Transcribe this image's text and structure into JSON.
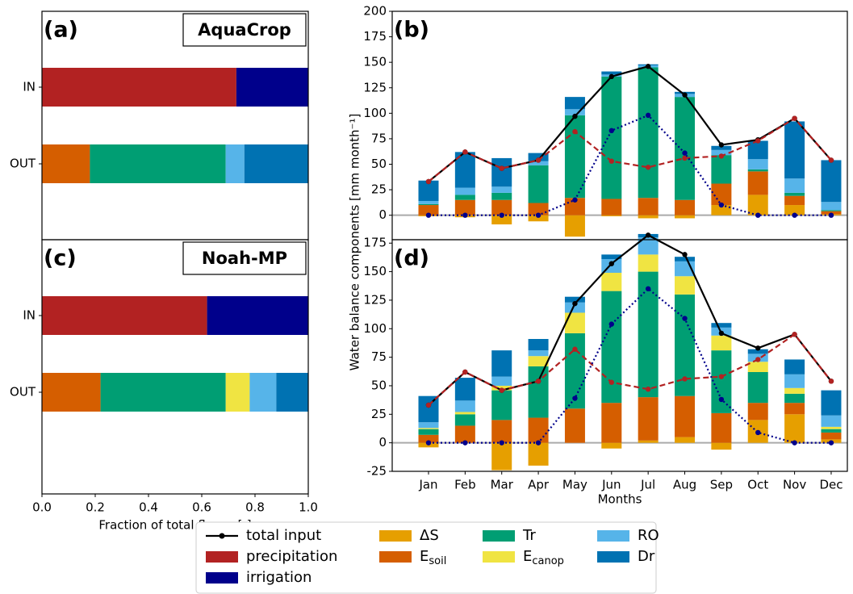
{
  "chart_data": [
    {
      "type": "barh_stacked",
      "panel_label": "(a)",
      "model": "AquaCrop",
      "categories": [
        "IN",
        "OUT"
      ],
      "xlim": [
        0,
        1
      ],
      "series": [
        {
          "color": "#b22222",
          "values": [
            0.73,
            null
          ]
        },
        {
          "color": "#00008b",
          "values": [
            0.27,
            null
          ]
        },
        {
          "color": "#d55e00",
          "values": [
            null,
            0.18
          ]
        },
        {
          "color": "#009e73",
          "values": [
            null,
            0.51
          ]
        },
        {
          "color": "#56b4e9",
          "values": [
            null,
            0.07
          ]
        },
        {
          "color": "#0072b2",
          "values": [
            null,
            0.24
          ]
        }
      ]
    },
    {
      "type": "bar_line",
      "panel_label": "(b)",
      "ylabel": "Water balance components [mm month⁻¹]",
      "ylim": [
        -24,
        200
      ],
      "yticks": [
        0,
        25,
        50,
        75,
        100,
        125,
        150,
        175,
        200
      ],
      "series": [
        {
          "kind": "line",
          "linestyle": "solid",
          "color": "#000000",
          "values": [
            33,
            62,
            46,
            54,
            97,
            136,
            146,
            118,
            69,
            74,
            95,
            54
          ]
        },
        {
          "kind": "line",
          "linestyle": "dashed",
          "color": "#b22222",
          "values": [
            33,
            62,
            46,
            54,
            82,
            53,
            47,
            56,
            58,
            73,
            95,
            54
          ]
        },
        {
          "kind": "line",
          "linestyle": "dotted",
          "color": "#00008b",
          "values": [
            0,
            0,
            0,
            0,
            15,
            83,
            98,
            61,
            10,
            0,
            0,
            0
          ]
        },
        {
          "kind": "bar",
          "color": "#e69f00",
          "values": [
            -1,
            -2,
            -9,
            -6,
            -21,
            -1,
            -3,
            -3,
            10,
            20,
            10,
            1
          ]
        },
        {
          "kind": "bar",
          "color": "#d55e00",
          "values": [
            10,
            15,
            15,
            12,
            17,
            16,
            17,
            15,
            21,
            23,
            9,
            3
          ]
        },
        {
          "kind": "bar",
          "color": "#009e73",
          "values": [
            1,
            5,
            7,
            37,
            81,
            120,
            128,
            101,
            28,
            2,
            3,
            1
          ]
        },
        {
          "kind": "bar",
          "color": "#56b4e9",
          "values": [
            3,
            7,
            6,
            4,
            6,
            2,
            2,
            3,
            5,
            10,
            14,
            8
          ]
        },
        {
          "kind": "bar",
          "color": "#0072b2",
          "values": [
            20,
            35,
            28,
            8,
            12,
            3,
            1,
            2,
            4,
            18,
            56,
            41
          ]
        }
      ]
    },
    {
      "type": "barh_stacked",
      "panel_label": "(c)",
      "model": "Noah-MP",
      "categories": [
        "IN",
        "OUT"
      ],
      "xlim": [
        0,
        1
      ],
      "xlabel": "Fraction of total fluxes [-]",
      "xticks": [
        {
          "value": 0,
          "label": "0.0"
        },
        0.2,
        0.4,
        0.6,
        0.8,
        {
          "value": 1,
          "label": "1.0"
        }
      ],
      "series": [
        {
          "color": "#b22222",
          "values": [
            0.62,
            null
          ]
        },
        {
          "color": "#00008b",
          "values": [
            0.38,
            null
          ]
        },
        {
          "color": "#d55e00",
          "values": [
            null,
            0.22
          ]
        },
        {
          "color": "#009e73",
          "values": [
            null,
            0.47
          ]
        },
        {
          "color": "#f0e442",
          "values": [
            null,
            0.09
          ]
        },
        {
          "color": "#56b4e9",
          "values": [
            null,
            0.1
          ]
        },
        {
          "color": "#0072b2",
          "values": [
            null,
            0.12
          ]
        }
      ]
    },
    {
      "type": "bar_line",
      "panel_label": "(d)",
      "xlabel": "Months",
      "categories": [
        "Jan",
        "Feb",
        "Mar",
        "Apr",
        "May",
        "Jun",
        "Jul",
        "Aug",
        "Sep",
        "Oct",
        "Nov",
        "Dec"
      ],
      "ylim": [
        -25,
        178
      ],
      "yticks": [
        -25,
        0,
        25,
        50,
        75,
        100,
        125,
        150,
        175
      ],
      "series": [
        {
          "name": "total input",
          "kind": "line",
          "linestyle": "solid",
          "color": "#000000",
          "values": [
            33,
            62,
            46,
            54,
            122,
            157,
            182,
            165,
            96,
            83,
            95,
            54
          ]
        },
        {
          "name": "precipitation",
          "kind": "line",
          "linestyle": "dashed",
          "color": "#b22222",
          "values": [
            33,
            62,
            46,
            54,
            82,
            53,
            47,
            56,
            58,
            73,
            95,
            54
          ]
        },
        {
          "name": "irrigation",
          "kind": "line",
          "linestyle": "dotted",
          "color": "#00008b",
          "values": [
            0,
            0,
            0,
            0,
            39,
            104,
            135,
            109,
            38,
            9,
            0,
            0
          ]
        },
        {
          "name": "ΔS",
          "kind": "bar",
          "color": "#e69f00",
          "values": [
            -4,
            0,
            -24,
            -20,
            0,
            -5,
            2,
            5,
            -6,
            20,
            25,
            3
          ]
        },
        {
          "name": "Esoil",
          "kind": "bar",
          "color": "#d55e00",
          "values": [
            7,
            15,
            20,
            22,
            30,
            35,
            38,
            36,
            26,
            15,
            10,
            6
          ]
        },
        {
          "name": "Tr",
          "kind": "bar",
          "color": "#009e73",
          "values": [
            5,
            10,
            26,
            45,
            66,
            98,
            110,
            89,
            55,
            27,
            8,
            3
          ]
        },
        {
          "name": "Ecanop",
          "kind": "bar",
          "color": "#f0e442",
          "values": [
            1,
            2,
            4,
            9,
            18,
            16,
            15,
            16,
            13,
            9,
            5,
            2
          ]
        },
        {
          "name": "RO",
          "kind": "bar",
          "color": "#56b4e9",
          "values": [
            5,
            10,
            8,
            5,
            9,
            12,
            15,
            13,
            7,
            7,
            12,
            10
          ]
        },
        {
          "name": "Dr",
          "kind": "bar",
          "color": "#0072b2",
          "values": [
            23,
            20,
            23,
            10,
            5,
            4,
            3,
            4,
            4,
            4,
            13,
            22
          ]
        }
      ]
    }
  ]
}
